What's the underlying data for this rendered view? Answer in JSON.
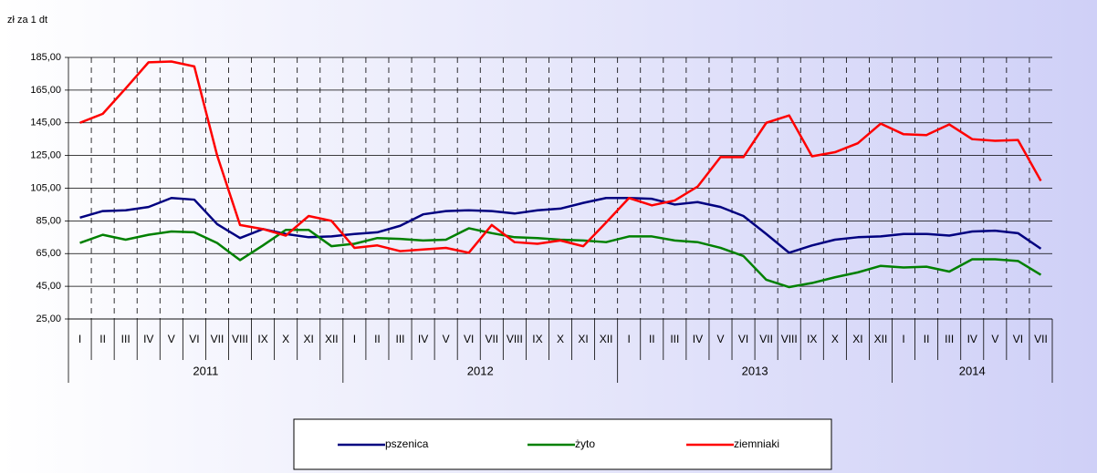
{
  "chart_data": {
    "type": "line",
    "y_axis_label": "zł za 1 dt",
    "categories": [
      "I",
      "II",
      "III",
      "IV",
      "V",
      "VI",
      "VII",
      "VIII",
      "IX",
      "X",
      "XI",
      "XII",
      "I",
      "II",
      "III",
      "IV",
      "V",
      "VI",
      "VII",
      "VIII",
      "IX",
      "X",
      "XI",
      "XII",
      "I",
      "II",
      "III",
      "IV",
      "V",
      "VI",
      "VII",
      "VIII",
      "IX",
      "X",
      "XI",
      "XII",
      "I",
      "II",
      "III",
      "IV",
      "V",
      "VI",
      "VII"
    ],
    "x_groups": [
      "2011",
      "2012",
      "2013",
      "2014"
    ],
    "ylim": [
      25,
      185
    ],
    "yticks": [
      {
        "value": 25,
        "label": "25,00"
      },
      {
        "value": 45,
        "label": "45,00"
      },
      {
        "value": 65,
        "label": "65,00"
      },
      {
        "value": 85,
        "label": "85,00"
      },
      {
        "value": 105,
        "label": "105,00"
      },
      {
        "value": 125,
        "label": "125,00"
      },
      {
        "value": 145,
        "label": "145,00"
      },
      {
        "value": 165,
        "label": "165,00"
      },
      {
        "value": 185,
        "label": "185,00"
      }
    ],
    "grid": true,
    "legend": "bottom",
    "series": [
      {
        "name": "pszenica",
        "color": "#000080",
        "values": [
          87,
          91,
          91.5,
          93.5,
          99,
          98,
          83,
          74.5,
          80,
          77,
          75,
          75.5,
          77,
          78,
          82,
          89,
          91,
          91.5,
          91,
          89.5,
          91.5,
          92.5,
          96,
          99,
          99,
          98.5,
          95,
          96.5,
          93.5,
          88,
          77,
          65.5,
          70,
          73.5,
          75,
          75.5,
          77,
          77,
          76,
          78.5,
          79,
          77.5,
          68
        ]
      },
      {
        "name": "żyto",
        "color": "#008000",
        "values": [
          71.5,
          76.5,
          73.5,
          76.5,
          78.5,
          78,
          71.5,
          61,
          70,
          79.5,
          79.5,
          69.5,
          71,
          74.5,
          74,
          73,
          73.5,
          80.5,
          77.5,
          75,
          74.5,
          73.5,
          73,
          72,
          75.5,
          75.5,
          73,
          72,
          68.5,
          63.5,
          49,
          44.5,
          47,
          50.5,
          53.5,
          57.5,
          56.5,
          57,
          54,
          61.5,
          61.5,
          60.5,
          52
        ]
      },
      {
        "name": "ziemniaki",
        "color": "#ff0000",
        "values": [
          145,
          150.5,
          166,
          182,
          182.5,
          179.5,
          125,
          82.5,
          80,
          76,
          88,
          85,
          68.5,
          70,
          66.5,
          67.5,
          68.5,
          65.5,
          82.5,
          72,
          71,
          73,
          69.5,
          84,
          99,
          94.5,
          97.5,
          106,
          124,
          124,
          145,
          149.5,
          124.5,
          127,
          132.5,
          144.5,
          138,
          137.5,
          144,
          135,
          134,
          134.5,
          109.5
        ]
      }
    ]
  }
}
